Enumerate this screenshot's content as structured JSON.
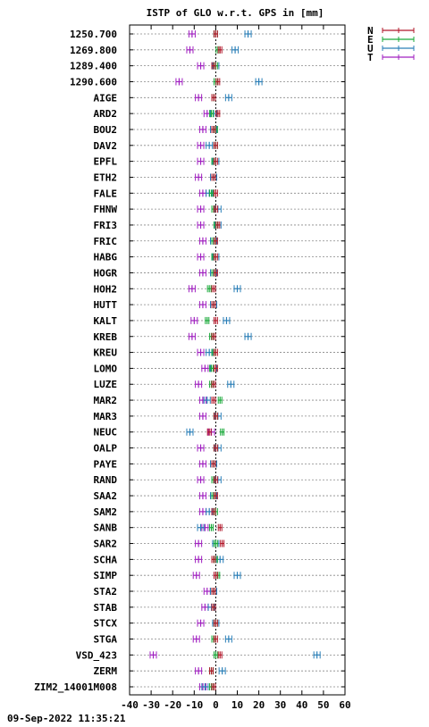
{
  "chart_data": {
    "type": "scatter",
    "title": "ISTP of GLO w.r.t. GPS in [mm]",
    "xlim": [
      -40,
      60
    ],
    "xticks": [
      -40,
      -30,
      -20,
      -10,
      0,
      10,
      20,
      30,
      40,
      50,
      60
    ],
    "grid": "horizontal dotted",
    "legend_position": "top-right, outside plot",
    "series": [
      {
        "name": "N",
        "color": "#b2182b"
      },
      {
        "name": "E",
        "color": "#1aaa3a"
      },
      {
        "name": "U",
        "color": "#2a7fb8"
      },
      {
        "name": "T",
        "color": "#a020c0"
      }
    ],
    "categories": [
      "1250.700",
      "1269.800",
      "1289.400",
      "1290.600",
      "AIGE",
      "ARD2",
      "BOU2",
      "DAV2",
      "EPFL",
      "ETH2",
      "FALE",
      "FHNW",
      "FRI3",
      "FRIC",
      "HABG",
      "HOGR",
      "HOH2",
      "HUTT",
      "KALT",
      "KREB",
      "KREU",
      "LOMO",
      "LUZE",
      "MAR2",
      "MAR3",
      "NEUC",
      "OALP",
      "PAYE",
      "RAND",
      "SAA2",
      "SAM2",
      "SANB",
      "SAR2",
      "SCHA",
      "SIMP",
      "STA2",
      "STAB",
      "STCX",
      "STGA",
      "VSD_423",
      "ZERM",
      "ZIM2_14001M008"
    ],
    "points": [
      {
        "N": 0,
        "E": 0,
        "U": 15,
        "T": -11
      },
      {
        "N": 2,
        "E": 1,
        "U": 9,
        "T": -12
      },
      {
        "N": -1,
        "E": 0,
        "U": 0,
        "T": -7
      },
      {
        "N": 1,
        "E": 0,
        "U": 20,
        "T": -17
      },
      {
        "N": -1,
        "E": -1,
        "U": 6,
        "T": -8
      },
      {
        "N": 1,
        "E": -2,
        "U": -1,
        "T": -4
      },
      {
        "N": -1,
        "E": 0,
        "U": -1,
        "T": -6
      },
      {
        "N": 0,
        "E": 0,
        "U": -3,
        "T": -7
      },
      {
        "N": 0,
        "E": -1,
        "U": 0,
        "T": -7
      },
      {
        "N": -1,
        "E": -1,
        "U": -1,
        "T": -8
      },
      {
        "N": 0,
        "E": -2,
        "U": -3,
        "T": -6
      },
      {
        "N": 0,
        "E": -1,
        "U": 1,
        "T": -7
      },
      {
        "N": 1,
        "E": 0,
        "U": 1,
        "T": -7
      },
      {
        "N": 0,
        "E": -1,
        "U": -1,
        "T": -6
      },
      {
        "N": 0,
        "E": -1,
        "U": 0,
        "T": -7
      },
      {
        "N": 0,
        "E": -1,
        "U": -1,
        "T": -6
      },
      {
        "N": -1,
        "E": -3,
        "U": 10,
        "T": -11
      },
      {
        "N": -1,
        "E": -1,
        "U": -1,
        "T": -6
      },
      {
        "N": 0,
        "E": -4,
        "U": 5,
        "T": -10
      },
      {
        "N": -1,
        "E": -2,
        "U": 15,
        "T": -11
      },
      {
        "N": 0,
        "E": -1,
        "U": -3,
        "T": -7
      },
      {
        "N": 0,
        "E": -2,
        "U": -1,
        "T": -5
      },
      {
        "N": -1,
        "E": -2,
        "U": 7,
        "T": -8
      },
      {
        "N": -1,
        "E": 2,
        "U": -4,
        "T": -6
      },
      {
        "N": 0,
        "E": 0,
        "U": 1,
        "T": -6
      },
      {
        "N": -3,
        "E": 3,
        "U": -12,
        "T": -2
      },
      {
        "N": 0,
        "E": 0,
        "U": 1,
        "T": -7
      },
      {
        "N": -1,
        "E": -1,
        "U": -1,
        "T": -6
      },
      {
        "N": 0,
        "E": -1,
        "U": 1,
        "T": -7
      },
      {
        "N": 0,
        "E": -1,
        "U": -1,
        "T": -6
      },
      {
        "N": -1,
        "E": 0,
        "U": -3,
        "T": -6
      },
      {
        "N": 2,
        "E": -2,
        "U": -7,
        "T": -5
      },
      {
        "N": 3,
        "E": 0,
        "U": 0,
        "T": -8
      },
      {
        "N": -1,
        "E": 0,
        "U": 2,
        "T": -8
      },
      {
        "N": 0,
        "E": 1,
        "U": 10,
        "T": -9
      },
      {
        "N": -1,
        "E": -1,
        "U": -1,
        "T": -4
      },
      {
        "N": -1,
        "E": -1,
        "U": -2,
        "T": -5
      },
      {
        "N": 0,
        "E": 0,
        "U": 0,
        "T": -7
      },
      {
        "N": 0,
        "E": -1,
        "U": 6,
        "T": -9
      },
      {
        "N": 2,
        "E": 0,
        "U": 47,
        "T": -29
      },
      {
        "N": -2,
        "E": -2,
        "U": 3,
        "T": -8
      },
      {
        "N": -1,
        "E": -2,
        "U": -5,
        "T": -6
      }
    ],
    "timestamp": "09-Sep-2022 11:35:21"
  }
}
